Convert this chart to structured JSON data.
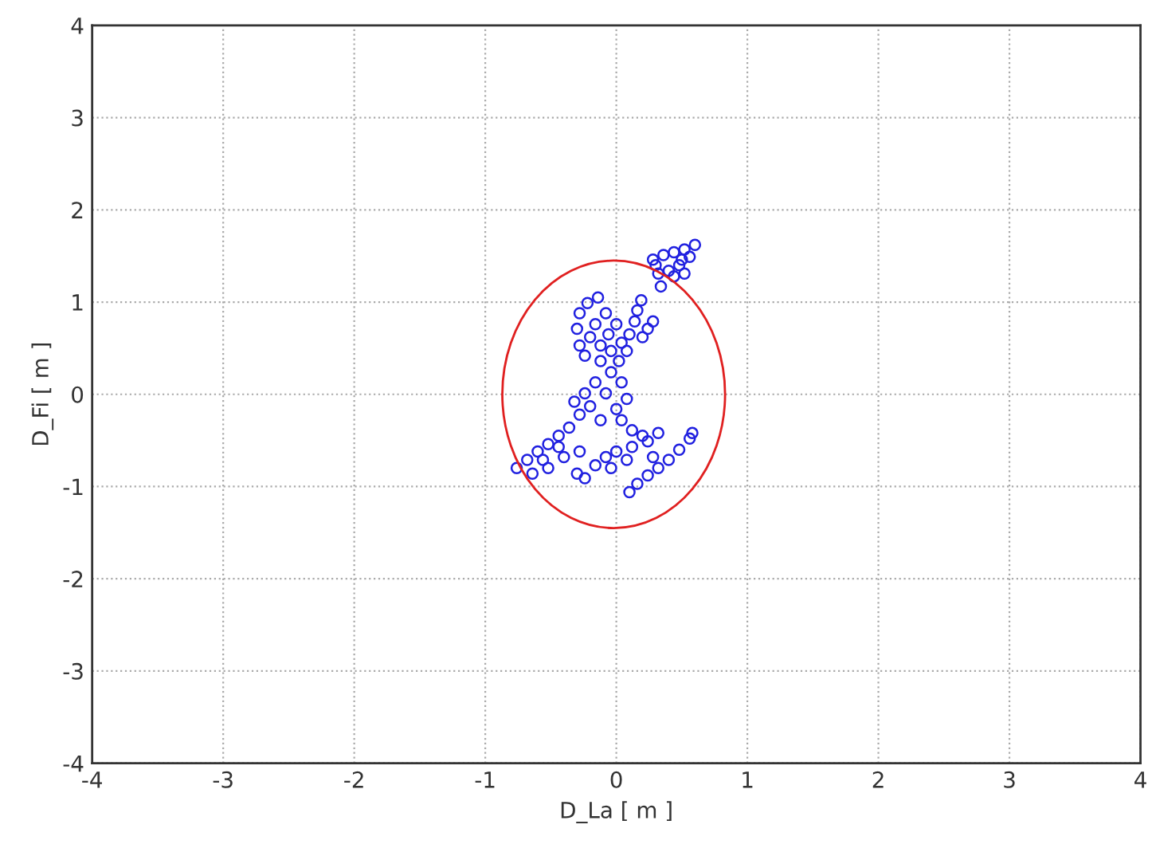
{
  "chart_data": {
    "type": "scatter",
    "xlabel": "D_La [ m ]",
    "ylabel": "D_Fi [ m ]",
    "xlim": [
      -4,
      4
    ],
    "ylim": [
      -4,
      4
    ],
    "xticks": [
      -4,
      -3,
      -2,
      -1,
      0,
      1,
      2,
      3,
      4
    ],
    "yticks": [
      -4,
      -3,
      -2,
      -1,
      0,
      1,
      2,
      3,
      4
    ],
    "grid": true,
    "marker": "circle",
    "series": [
      {
        "color": "#2020e0",
        "x": [
          0.28,
          0.36,
          0.44,
          0.52,
          0.6,
          0.56,
          0.48,
          0.4,
          0.32,
          0.34,
          0.44,
          0.52,
          0.5,
          0.3,
          0.19,
          0.16,
          0.14,
          0.28,
          0.24,
          0.2,
          -0.14,
          -0.22,
          -0.28,
          -0.3,
          -0.28,
          -0.24,
          -0.12,
          -0.04,
          0.04,
          0.1,
          0.0,
          -0.08,
          -0.16,
          -0.2,
          -0.06,
          -0.12,
          0.08,
          0.02,
          -0.04,
          0.04,
          0.08,
          0.0,
          -0.08,
          -0.16,
          -0.24,
          -0.32,
          -0.28,
          -0.12,
          0.04,
          0.12,
          -0.2,
          -0.76,
          -0.68,
          -0.6,
          -0.52,
          -0.44,
          -0.36,
          -0.64,
          -0.52,
          -0.4,
          -0.28,
          -0.44,
          -0.56,
          -0.3,
          -0.24,
          -0.16,
          -0.08,
          0.0,
          0.12,
          0.24,
          0.32,
          0.2,
          0.08,
          -0.04,
          0.1,
          0.16,
          0.24,
          0.32,
          0.4,
          0.48,
          0.56,
          0.58,
          0.28
        ],
        "values": [
          1.46,
          1.51,
          1.54,
          1.57,
          1.62,
          1.49,
          1.4,
          1.34,
          1.31,
          1.17,
          1.28,
          1.31,
          1.46,
          1.4,
          1.02,
          0.91,
          0.79,
          0.79,
          0.71,
          0.62,
          1.05,
          0.99,
          0.88,
          0.71,
          0.53,
          0.42,
          0.36,
          0.47,
          0.56,
          0.65,
          0.76,
          0.88,
          0.76,
          0.62,
          0.65,
          0.53,
          0.47,
          0.36,
          0.24,
          0.13,
          -0.05,
          -0.16,
          0.01,
          0.13,
          0.01,
          -0.08,
          -0.22,
          -0.28,
          -0.28,
          -0.39,
          -0.13,
          -0.8,
          -0.71,
          -0.62,
          -0.54,
          -0.45,
          -0.36,
          -0.86,
          -0.8,
          -0.68,
          -0.62,
          -0.57,
          -0.71,
          -0.86,
          -0.91,
          -0.77,
          -0.68,
          -0.62,
          -0.57,
          -0.51,
          -0.42,
          -0.45,
          -0.71,
          -0.8,
          -1.06,
          -0.97,
          -0.88,
          -0.8,
          -0.71,
          -0.6,
          -0.48,
          -0.42,
          -0.68
        ]
      }
    ]
  }
}
